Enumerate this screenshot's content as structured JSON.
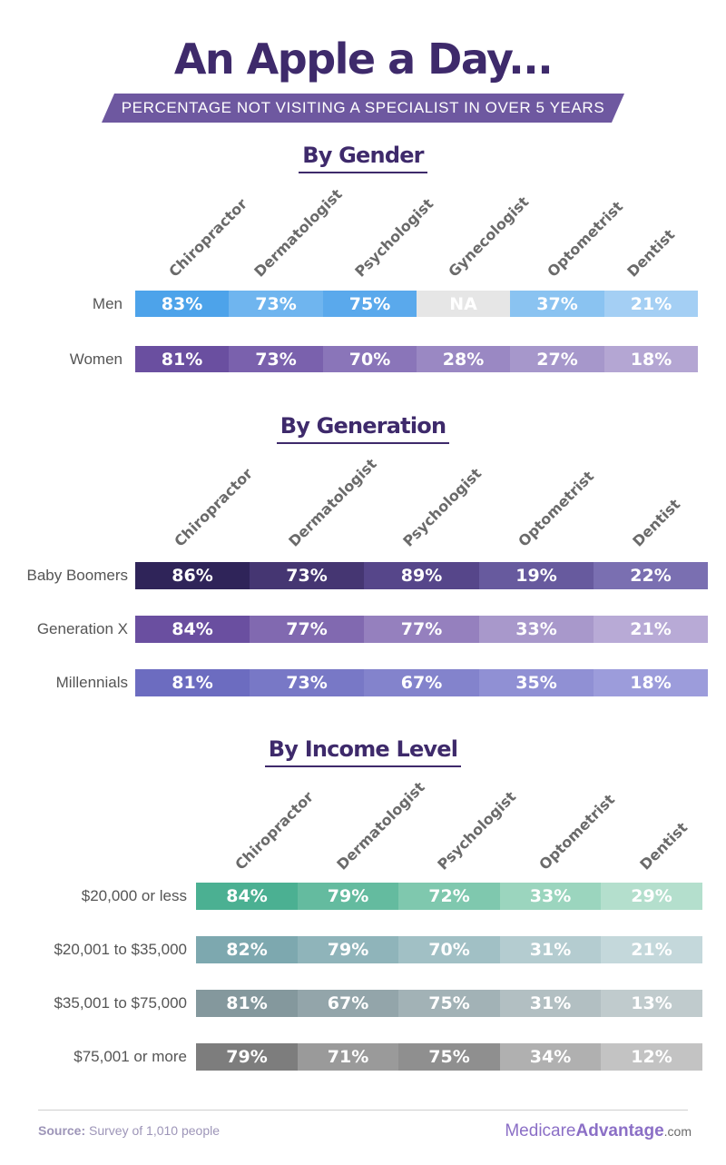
{
  "title": "An Apple a Day...",
  "subtitle": "PERCENTAGE NOT VISITING A SPECIALIST IN OVER 5 YEARS",
  "footer": {
    "source_label": "Source:",
    "source_text": "Survey of 1,010 people",
    "logo_main": "Medicare",
    "logo_bold": "Advantage",
    "logo_suffix": ".com"
  },
  "chart_data": [
    {
      "type": "table",
      "title": "By Gender",
      "columns": [
        "Chiropractor",
        "Dermatologist",
        "Psychologist",
        "Gynecologist",
        "Optometrist",
        "Dentist"
      ],
      "rows": [
        {
          "name": "Men",
          "values": [
            "83%",
            "73%",
            "75%",
            "NA",
            "37%",
            "21%"
          ],
          "colors": [
            "#4da3ea",
            "#6fb5ef",
            "#5aa9ec",
            "#e6e6e6",
            "#8ac3f1",
            "#a4cff4"
          ]
        },
        {
          "name": "Women",
          "values": [
            "81%",
            "73%",
            "70%",
            "28%",
            "27%",
            "18%"
          ],
          "colors": [
            "#6a4fa0",
            "#7a61ad",
            "#8a75b9",
            "#9a88c3",
            "#a697cb",
            "#b4a6d3"
          ]
        }
      ]
    },
    {
      "type": "table",
      "title": "By Generation",
      "columns": [
        "Chiropractor",
        "Dermatologist",
        "Psychologist",
        "Optometrist",
        "Dentist"
      ],
      "rows": [
        {
          "name": "Baby Boomers",
          "values": [
            "86%",
            "73%",
            "89%",
            "19%",
            "22%"
          ],
          "colors": [
            "#2f2459",
            "#453672",
            "#56468a",
            "#675a9e",
            "#7a6fb1"
          ]
        },
        {
          "name": "Generation X",
          "values": [
            "84%",
            "77%",
            "77%",
            "33%",
            "21%"
          ],
          "colors": [
            "#6a4fa0",
            "#8169b0",
            "#9580be",
            "#a898cb",
            "#b8aad6"
          ]
        },
        {
          "name": "Millennials",
          "values": [
            "81%",
            "73%",
            "67%",
            "35%",
            "18%"
          ],
          "colors": [
            "#6c6cc0",
            "#7878c6",
            "#8383cc",
            "#9090d4",
            "#9c9cdb"
          ]
        }
      ]
    },
    {
      "type": "table",
      "title": "By Income Level",
      "columns": [
        "Chiropractor",
        "Dermatologist",
        "Psychologist",
        "Optometrist",
        "Dentist"
      ],
      "rows": [
        {
          "name": "$20,000 or less",
          "values": [
            "84%",
            "79%",
            "72%",
            "33%",
            "29%"
          ],
          "colors": [
            "#4bb092",
            "#64bb9f",
            "#7fc8ae",
            "#9bd5be",
            "#b4dfcd"
          ]
        },
        {
          "name": "$20,001 to $35,000",
          "values": [
            "82%",
            "79%",
            "70%",
            "31%",
            "21%"
          ],
          "colors": [
            "#7da8af",
            "#8fb4ba",
            "#a1c0c5",
            "#b4ccd0",
            "#c4d8db"
          ]
        },
        {
          "name": "$35,001 to $75,000",
          "values": [
            "81%",
            "67%",
            "75%",
            "31%",
            "13%"
          ],
          "colors": [
            "#84989d",
            "#93a5aa",
            "#a2b2b6",
            "#b2bfc2",
            "#c0cbcd"
          ]
        },
        {
          "name": "$75,001 or more",
          "values": [
            "79%",
            "71%",
            "75%",
            "34%",
            "12%"
          ],
          "colors": [
            "#7d7d7d",
            "#9a9a9a",
            "#8f8f8f",
            "#b0b0b0",
            "#c3c3c3"
          ]
        }
      ]
    }
  ]
}
